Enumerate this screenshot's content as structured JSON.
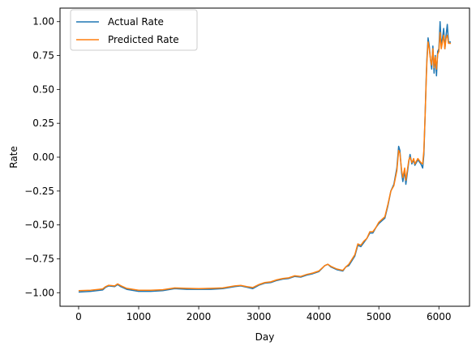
{
  "chart_data": {
    "type": "line",
    "title": "",
    "xlabel": "Day",
    "ylabel": "Rate",
    "xlim": [
      -310,
      6510
    ],
    "ylim": [
      -1.1,
      1.1
    ],
    "xticks": [
      0,
      1000,
      2000,
      3000,
      4000,
      5000,
      6000
    ],
    "xtick_labels": [
      "0",
      "1000",
      "2000",
      "3000",
      "4000",
      "5000",
      "6000"
    ],
    "yticks": [
      -1.0,
      -0.75,
      -0.5,
      -0.25,
      0.0,
      0.25,
      0.5,
      0.75,
      1.0
    ],
    "ytick_labels": [
      "−1.00",
      "−0.75",
      "−0.50",
      "−0.25",
      "0.00",
      "0.25",
      "0.50",
      "0.75",
      "1.00"
    ],
    "grid": false,
    "legend_position": "top-left",
    "series": [
      {
        "name": "Actual Rate",
        "color": "#1f77b4",
        "x": [
          0,
          200,
          400,
          450,
          500,
          600,
          650,
          700,
          800,
          1000,
          1200,
          1400,
          1600,
          1800,
          2000,
          2200,
          2400,
          2600,
          2700,
          2800,
          2900,
          3000,
          3100,
          3200,
          3300,
          3400,
          3500,
          3600,
          3700,
          3800,
          3900,
          4000,
          4100,
          4150,
          4200,
          4300,
          4400,
          4450,
          4500,
          4600,
          4650,
          4700,
          4750,
          4800,
          4850,
          4900,
          4950,
          5000,
          5050,
          5100,
          5150,
          5200,
          5250,
          5300,
          5330,
          5350,
          5380,
          5400,
          5430,
          5450,
          5500,
          5520,
          5550,
          5580,
          5600,
          5650,
          5700,
          5730,
          5750,
          5770,
          5790,
          5800,
          5820,
          5840,
          5860,
          5880,
          5900,
          5920,
          5940,
          5960,
          5980,
          6000,
          6020,
          6040,
          6060,
          6080,
          6100,
          6120,
          6140,
          6160,
          6200
        ],
        "y": [
          -0.995,
          -0.99,
          -0.98,
          -0.96,
          -0.95,
          -0.955,
          -0.94,
          -0.955,
          -0.975,
          -0.99,
          -0.99,
          -0.985,
          -0.97,
          -0.975,
          -0.975,
          -0.975,
          -0.97,
          -0.955,
          -0.95,
          -0.96,
          -0.97,
          -0.945,
          -0.93,
          -0.925,
          -0.91,
          -0.9,
          -0.895,
          -0.88,
          -0.885,
          -0.87,
          -0.86,
          -0.845,
          -0.8,
          -0.79,
          -0.81,
          -0.83,
          -0.84,
          -0.81,
          -0.8,
          -0.73,
          -0.65,
          -0.66,
          -0.63,
          -0.6,
          -0.56,
          -0.56,
          -0.52,
          -0.49,
          -0.47,
          -0.45,
          -0.36,
          -0.25,
          -0.2,
          -0.08,
          0.08,
          0.05,
          -0.12,
          -0.18,
          -0.1,
          -0.2,
          -0.03,
          0.02,
          -0.05,
          -0.02,
          -0.06,
          -0.02,
          -0.05,
          -0.08,
          0.02,
          0.3,
          0.6,
          0.72,
          0.88,
          0.82,
          0.72,
          0.65,
          0.82,
          0.62,
          0.75,
          0.6,
          0.78,
          0.8,
          1.0,
          0.82,
          0.88,
          0.95,
          0.8,
          0.9,
          0.98,
          0.85,
          0.85
        ]
      },
      {
        "name": "Predicted Rate",
        "color": "#ff7f0e",
        "x": [
          0,
          200,
          400,
          450,
          500,
          600,
          650,
          700,
          800,
          1000,
          1200,
          1400,
          1600,
          1800,
          2000,
          2200,
          2400,
          2600,
          2700,
          2800,
          2900,
          3000,
          3100,
          3200,
          3300,
          3400,
          3500,
          3600,
          3700,
          3800,
          3900,
          4000,
          4100,
          4150,
          4200,
          4300,
          4400,
          4450,
          4500,
          4600,
          4650,
          4700,
          4750,
          4800,
          4850,
          4900,
          4950,
          5000,
          5050,
          5100,
          5150,
          5200,
          5250,
          5300,
          5330,
          5350,
          5380,
          5400,
          5430,
          5450,
          5500,
          5520,
          5550,
          5580,
          5600,
          5650,
          5700,
          5730,
          5750,
          5770,
          5790,
          5800,
          5820,
          5840,
          5860,
          5880,
          5900,
          5920,
          5940,
          5960,
          5980,
          6000,
          6020,
          6040,
          6060,
          6080,
          6100,
          6120,
          6140,
          6160,
          6200
        ],
        "y": [
          -0.985,
          -0.982,
          -0.972,
          -0.955,
          -0.945,
          -0.95,
          -0.935,
          -0.948,
          -0.968,
          -0.982,
          -0.982,
          -0.978,
          -0.965,
          -0.968,
          -0.97,
          -0.968,
          -0.965,
          -0.95,
          -0.946,
          -0.955,
          -0.962,
          -0.94,
          -0.925,
          -0.92,
          -0.905,
          -0.895,
          -0.89,
          -0.875,
          -0.88,
          -0.865,
          -0.855,
          -0.84,
          -0.8,
          -0.79,
          -0.805,
          -0.825,
          -0.835,
          -0.81,
          -0.79,
          -0.72,
          -0.64,
          -0.65,
          -0.62,
          -0.6,
          -0.55,
          -0.55,
          -0.52,
          -0.48,
          -0.46,
          -0.44,
          -0.35,
          -0.25,
          -0.21,
          -0.1,
          0.05,
          0.03,
          -0.1,
          -0.15,
          -0.08,
          -0.17,
          -0.02,
          0.0,
          -0.04,
          -0.01,
          -0.05,
          -0.01,
          -0.04,
          -0.05,
          0.05,
          0.3,
          0.58,
          0.7,
          0.85,
          0.8,
          0.72,
          0.68,
          0.8,
          0.66,
          0.74,
          0.65,
          0.76,
          0.78,
          0.92,
          0.8,
          0.85,
          0.9,
          0.8,
          0.88,
          0.9,
          0.84,
          0.84
        ]
      }
    ]
  }
}
